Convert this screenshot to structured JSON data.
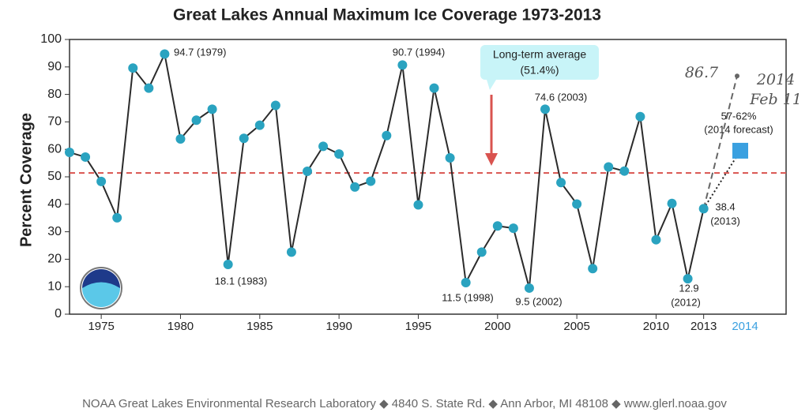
{
  "chart_data": {
    "type": "line",
    "title": "Great Lakes Annual Maximum Ice Coverage 1973-2013",
    "y_label": "Percent Coverage",
    "x": [
      1973,
      1974,
      1975,
      1976,
      1977,
      1978,
      1979,
      1980,
      1981,
      1982,
      1983,
      1984,
      1985,
      1986,
      1987,
      1988,
      1989,
      1990,
      1991,
      1992,
      1993,
      1994,
      1995,
      1996,
      1997,
      1998,
      1999,
      2000,
      2001,
      2002,
      2003,
      2004,
      2005,
      2006,
      2007,
      2008,
      2009,
      2010,
      2011,
      2012,
      2013
    ],
    "values": [
      58.9,
      57.2,
      48.3,
      35.1,
      89.6,
      82.3,
      94.7,
      63.8,
      70.6,
      74.6,
      18.1,
      64.0,
      68.8,
      76.0,
      22.6,
      52.0,
      61.1,
      58.3,
      46.3,
      48.4,
      65.0,
      90.7,
      39.8,
      82.3,
      56.9,
      11.5,
      22.6,
      32.1,
      31.3,
      9.5,
      74.6,
      47.9,
      40.1,
      16.6,
      53.6,
      52.1,
      71.9,
      27.1,
      40.3,
      12.9,
      38.4
    ],
    "line_color": "#2b2b2b",
    "marker_color": "#2aa3c0",
    "xlim": [
      1973,
      2018.2
    ],
    "xticks": [
      1975,
      1980,
      1985,
      1990,
      1995,
      2000,
      2005,
      2010,
      2013
    ],
    "ylim": [
      0,
      100
    ],
    "yticks": [
      0,
      10,
      20,
      30,
      40,
      50,
      60,
      70,
      80,
      90,
      100
    ],
    "average": {
      "value": 51.4,
      "label": [
        "Long-term average",
        "(51.4%)"
      ],
      "color": "#d9534f"
    },
    "forecast": {
      "tick_label": "2014",
      "value": 59.5,
      "label": [
        "57-62%",
        "(2014 forecast)"
      ],
      "color": "#3aa0e0"
    },
    "handwritten": {
      "value": 86.7,
      "note": [
        "2014",
        "Feb 11"
      ]
    },
    "annotations": [
      "94.7 (1979)",
      "18.1 (1983)",
      "90.7 (1994)",
      "74.6 (2003)",
      "11.5 (1998)",
      "9.5 (2002)",
      "12.9",
      "(2012)",
      "38.4",
      "(2013)"
    ],
    "footer": "NOAA Great Lakes Environmental Research Laboratory ◆ 4840 S. State Rd. ◆ Ann Arbor, MI 48108 ◆ www.glerl.noaa.gov"
  }
}
